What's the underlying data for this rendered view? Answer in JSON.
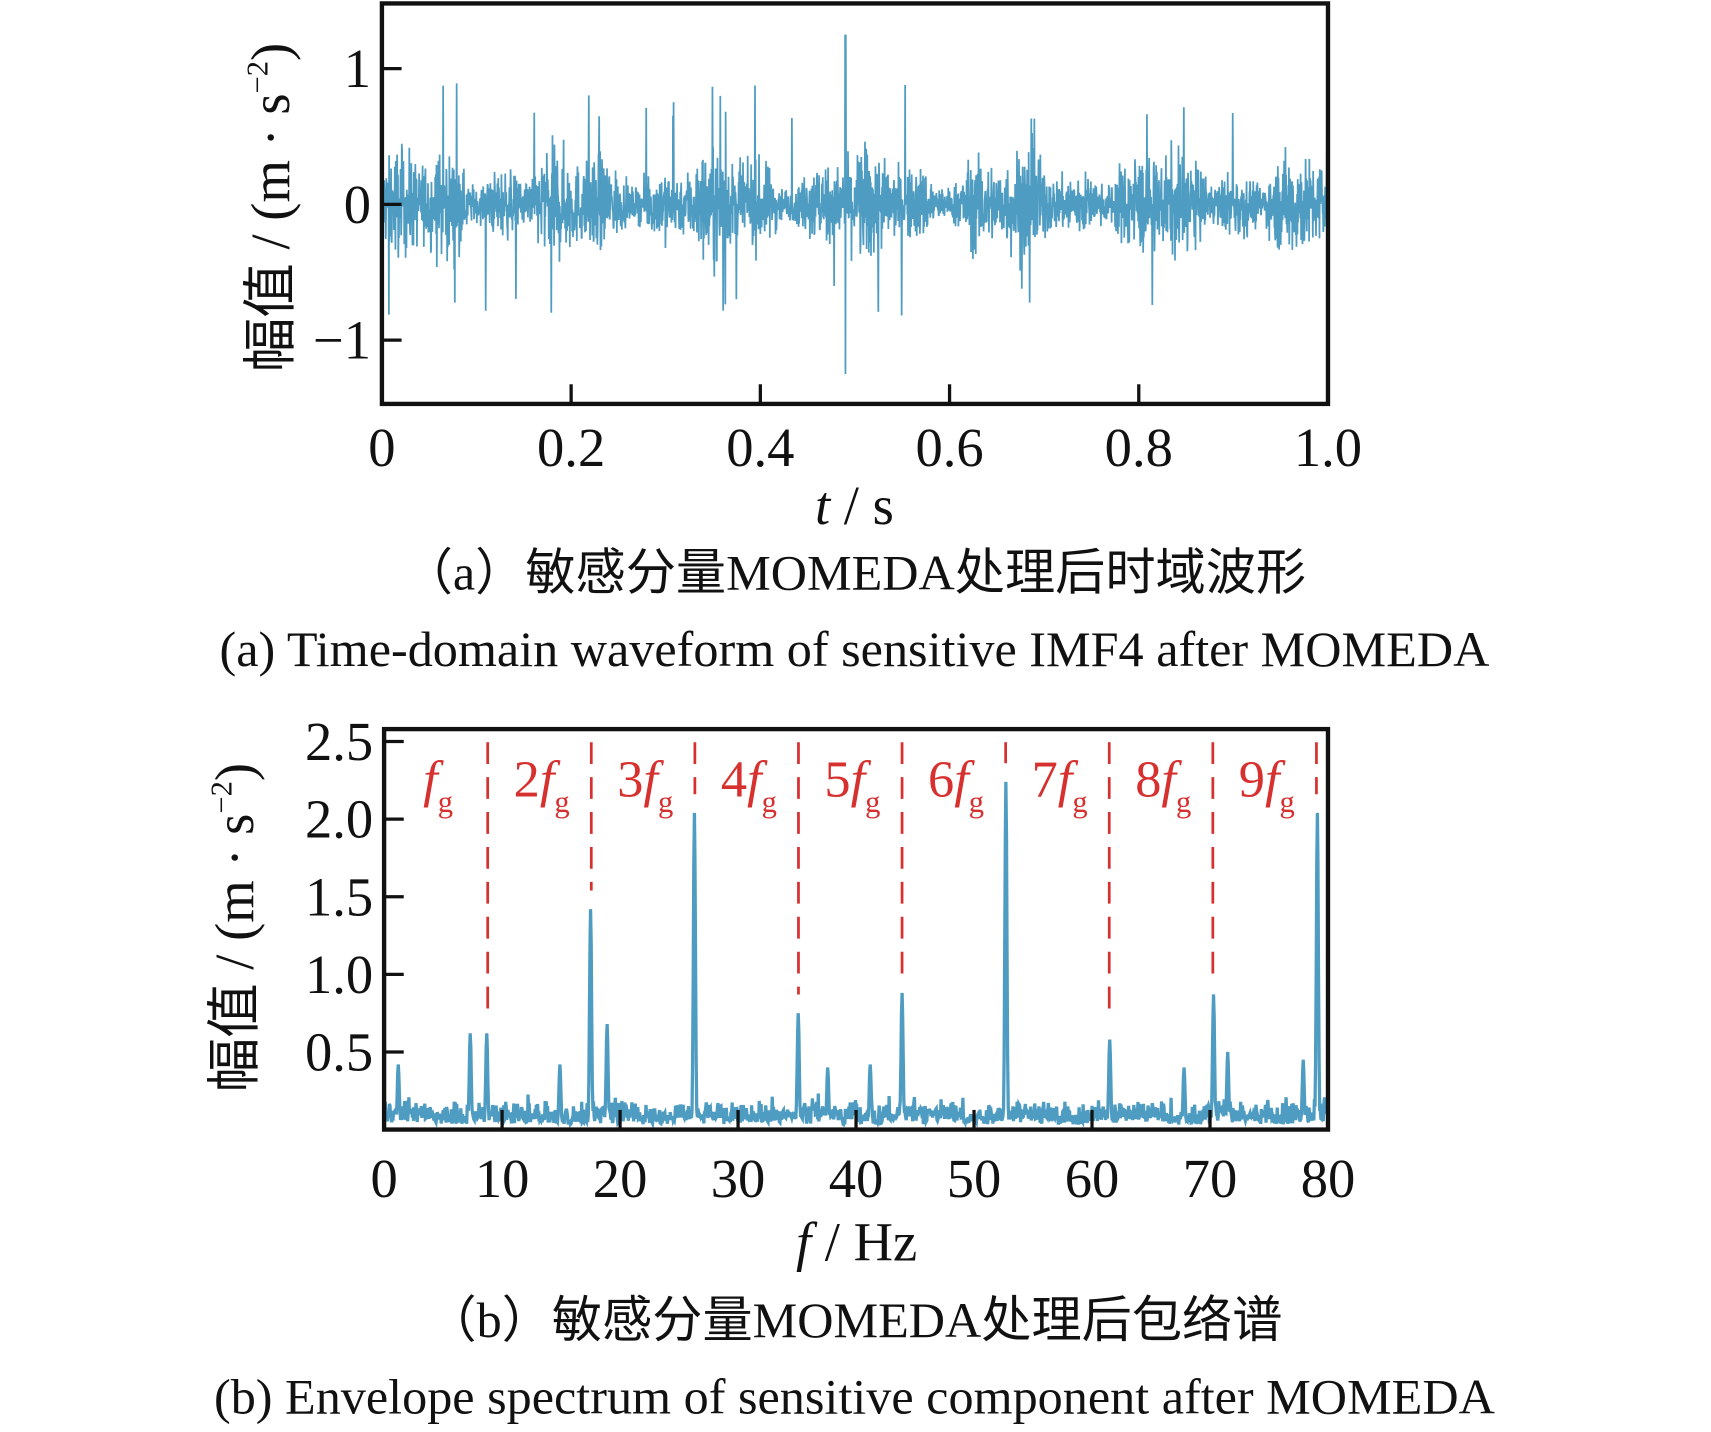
{
  "colors": {
    "signal": "#4f9cc2",
    "harmonic": "#d6302f",
    "axis": "#111111"
  },
  "chart_data": [
    {
      "type": "line",
      "panel": "a",
      "title_cn": "（a）敏感分量MOMEDA处理后时域波形",
      "title_en": "(a)  Time-domain waveform of sensitive IMF4 after MOMEDA",
      "xlabel_var": "t",
      "xlabel_unit": " / s",
      "ylabel": "幅值 / (m · s",
      "ylabel_exp": "−2",
      "ylabel_close": ")",
      "xlim": [
        0,
        1.0
      ],
      "ylim": [
        -1.47,
        1.48
      ],
      "xticks": [
        0,
        0.2,
        0.4,
        0.6,
        0.8,
        1.0
      ],
      "xtick_labels": [
        "0",
        "0.2",
        "0.4",
        "0.6",
        "0.8",
        "1.0"
      ],
      "yticks": [
        1,
        0,
        -1
      ],
      "ytick_labels": [
        "1",
        "0",
        "−1"
      ],
      "signal": {
        "description_values": "dense random vibration",
        "typical_amplitude": 0.35,
        "max_amplitude": 0.9,
        "impulse": {
          "t": 0.49,
          "value": 1.25,
          "min": -1.25
        }
      }
    },
    {
      "type": "line",
      "panel": "b",
      "title_cn": "（b）敏感分量MOMEDA处理后包络谱",
      "title_en": "(b)  Envelope spectrum of sensitive component after MOMEDA",
      "xlabel_var": "f",
      "xlabel_unit": " / Hz",
      "ylabel": "幅值 / (m · s",
      "ylabel_exp": "−2",
      "ylabel_close": ")",
      "xlim": [
        0,
        80
      ],
      "ylim": [
        0,
        2.58
      ],
      "xticks": [
        0,
        10,
        20,
        30,
        40,
        50,
        60,
        70,
        80
      ],
      "xtick_labels": [
        "0",
        "10",
        "20",
        "30",
        "40",
        "50",
        "60",
        "70",
        "80"
      ],
      "yticks": [
        0.5,
        1.0,
        1.5,
        2.0,
        2.5
      ],
      "ytick_labels": [
        "0.5",
        "1.0",
        "1.5",
        "2.0",
        "2.5"
      ],
      "noise_floor": 0.12,
      "peaks": [
        {
          "f": 1.2,
          "value": 0.42
        },
        {
          "f": 7.3,
          "value": 0.62
        },
        {
          "f": 8.7,
          "value": 0.62
        },
        {
          "f": 14.9,
          "value": 0.42
        },
        {
          "f": 17.5,
          "value": 1.42
        },
        {
          "f": 18.9,
          "value": 0.68
        },
        {
          "f": 26.3,
          "value": 2.04
        },
        {
          "f": 35.1,
          "value": 0.75
        },
        {
          "f": 37.6,
          "value": 0.4
        },
        {
          "f": 41.2,
          "value": 0.42
        },
        {
          "f": 43.9,
          "value": 0.88
        },
        {
          "f": 52.7,
          "value": 2.24
        },
        {
          "f": 61.5,
          "value": 0.58
        },
        {
          "f": 67.8,
          "value": 0.4
        },
        {
          "f": 70.3,
          "value": 0.87
        },
        {
          "f": 71.5,
          "value": 0.5
        },
        {
          "f": 77.9,
          "value": 0.45
        },
        {
          "f": 79.1,
          "value": 2.04
        }
      ],
      "harmonics": [
        {
          "num": "",
          "var": "f",
          "sub": "g",
          "f": 8.78
        },
        {
          "num": "2",
          "var": "f",
          "sub": "g",
          "f": 17.56
        },
        {
          "num": "3",
          "var": "f",
          "sub": "g",
          "f": 26.34
        },
        {
          "num": "4",
          "var": "f",
          "sub": "g",
          "f": 35.12
        },
        {
          "num": "5",
          "var": "f",
          "sub": "g",
          "f": 43.9
        },
        {
          "num": "6",
          "var": "f",
          "sub": "g",
          "f": 52.68
        },
        {
          "num": "7",
          "var": "f",
          "sub": "g",
          "f": 61.46
        },
        {
          "num": "8",
          "var": "f",
          "sub": "g",
          "f": 70.24
        },
        {
          "num": "9",
          "var": "f",
          "sub": "g",
          "f": 79.02
        }
      ]
    }
  ]
}
